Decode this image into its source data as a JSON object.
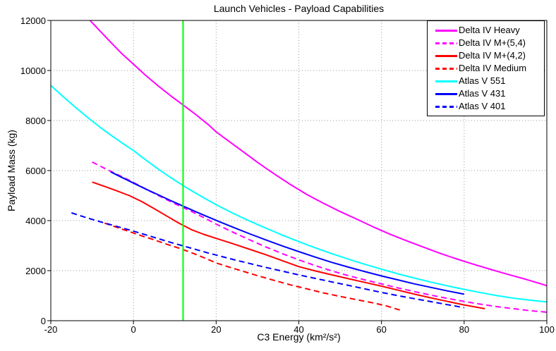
{
  "chart_data": {
    "type": "line",
    "title": "Launch Vehicles - Payload Capabilities",
    "xlabel": "C3 Energy (km²/s²)",
    "ylabel": "Payload Mass (kg)",
    "xlim": [
      -20,
      100
    ],
    "ylim": [
      0,
      12000
    ],
    "xticks": [
      -20,
      0,
      20,
      40,
      60,
      80,
      100
    ],
    "yticks": [
      0,
      2000,
      4000,
      6000,
      8000,
      10000,
      12000
    ],
    "grid": true,
    "grid_style": "dotted",
    "grid_color": "#999999",
    "axis_color": "#000000",
    "legend_position": "top-right",
    "reference_line": {
      "orientation": "vertical",
      "x": 12,
      "color": "#00FF00"
    },
    "series": [
      {
        "name": "Delta IV Heavy",
        "color": "#FF00FF",
        "line_style": "solid",
        "points": [
          [
            -10.5,
            12000
          ],
          [
            -8,
            11560
          ],
          [
            -5.5,
            11130
          ],
          [
            -3,
            10700
          ],
          [
            0,
            10250
          ],
          [
            3,
            9800
          ],
          [
            6,
            9380
          ],
          [
            9,
            8990
          ],
          [
            12,
            8620
          ],
          [
            15,
            8250
          ],
          [
            18,
            7850
          ],
          [
            20,
            7550
          ],
          [
            23,
            7180
          ],
          [
            26,
            6820
          ],
          [
            30,
            6330
          ],
          [
            34,
            5870
          ],
          [
            38,
            5440
          ],
          [
            42,
            5040
          ],
          [
            46,
            4690
          ],
          [
            50,
            4360
          ],
          [
            54,
            4060
          ],
          [
            58,
            3750
          ],
          [
            62,
            3460
          ],
          [
            66,
            3200
          ],
          [
            70,
            2950
          ],
          [
            74,
            2700
          ],
          [
            78,
            2480
          ],
          [
            82,
            2270
          ],
          [
            86,
            2070
          ],
          [
            90,
            1880
          ],
          [
            95,
            1650
          ],
          [
            100,
            1400
          ]
        ]
      },
      {
        "name": "Delta IV M+(5,4)",
        "color": "#FF00FF",
        "line_style": "dashed",
        "points": [
          [
            -10,
            6340
          ],
          [
            -7,
            6090
          ],
          [
            -4,
            5850
          ],
          [
            -1,
            5610
          ],
          [
            2,
            5350
          ],
          [
            5,
            5090
          ],
          [
            8,
            4840
          ],
          [
            11,
            4600
          ],
          [
            14,
            4370
          ],
          [
            17,
            4120
          ],
          [
            20,
            3860
          ],
          [
            24,
            3540
          ],
          [
            28,
            3240
          ],
          [
            32,
            2950
          ],
          [
            36,
            2680
          ],
          [
            40,
            2430
          ],
          [
            44,
            2200
          ],
          [
            48,
            1990
          ],
          [
            52,
            1800
          ],
          [
            56,
            1630
          ],
          [
            60,
            1470
          ],
          [
            64,
            1310
          ],
          [
            68,
            1160
          ],
          [
            72,
            1020
          ],
          [
            76,
            890
          ],
          [
            80,
            770
          ],
          [
            84,
            660
          ],
          [
            88,
            560
          ],
          [
            92,
            480
          ],
          [
            96,
            400
          ],
          [
            100,
            340
          ]
        ]
      },
      {
        "name": "Delta IV M+(4,2)",
        "color": "#FF0000",
        "line_style": "solid",
        "points": [
          [
            -10,
            5540
          ],
          [
            -7,
            5370
          ],
          [
            -4,
            5190
          ],
          [
            -1,
            5000
          ],
          [
            2,
            4760
          ],
          [
            5,
            4480
          ],
          [
            8,
            4190
          ],
          [
            11,
            3900
          ],
          [
            14,
            3640
          ],
          [
            17,
            3450
          ],
          [
            20,
            3290
          ],
          [
            24,
            3080
          ],
          [
            28,
            2860
          ],
          [
            32,
            2640
          ],
          [
            36,
            2400
          ],
          [
            40,
            2160
          ],
          [
            44,
            1990
          ],
          [
            48,
            1830
          ],
          [
            52,
            1680
          ],
          [
            56,
            1530
          ],
          [
            60,
            1380
          ],
          [
            64,
            1220
          ],
          [
            68,
            1060
          ],
          [
            72,
            910
          ],
          [
            76,
            770
          ],
          [
            80,
            630
          ],
          [
            85,
            480
          ]
        ]
      },
      {
        "name": "Delta IV Medium",
        "color": "#FF0000",
        "line_style": "dashed",
        "points": [
          [
            -7,
            3900
          ],
          [
            -4,
            3730
          ],
          [
            -1,
            3560
          ],
          [
            2,
            3390
          ],
          [
            5,
            3230
          ],
          [
            8,
            3060
          ],
          [
            11,
            2900
          ],
          [
            14,
            2720
          ],
          [
            17,
            2520
          ],
          [
            20,
            2310
          ],
          [
            23,
            2150
          ],
          [
            26,
            2000
          ],
          [
            30,
            1800
          ],
          [
            34,
            1610
          ],
          [
            38,
            1430
          ],
          [
            42,
            1270
          ],
          [
            46,
            1110
          ],
          [
            50,
            970
          ],
          [
            54,
            840
          ],
          [
            58,
            710
          ],
          [
            61,
            600
          ],
          [
            63,
            500
          ],
          [
            65,
            400
          ]
        ]
      },
      {
        "name": "Atlas V 551",
        "color": "#00FFFF",
        "line_style": "solid",
        "points": [
          [
            -20,
            9400
          ],
          [
            -17,
            8950
          ],
          [
            -14,
            8520
          ],
          [
            -11,
            8110
          ],
          [
            -8,
            7720
          ],
          [
            -5,
            7360
          ],
          [
            -2,
            7020
          ],
          [
            0,
            6800
          ],
          [
            3,
            6420
          ],
          [
            6,
            6060
          ],
          [
            9,
            5720
          ],
          [
            12,
            5400
          ],
          [
            15,
            5100
          ],
          [
            18,
            4820
          ],
          [
            21,
            4550
          ],
          [
            24,
            4300
          ],
          [
            28,
            3990
          ],
          [
            32,
            3700
          ],
          [
            36,
            3420
          ],
          [
            40,
            3160
          ],
          [
            44,
            2910
          ],
          [
            48,
            2680
          ],
          [
            52,
            2460
          ],
          [
            56,
            2250
          ],
          [
            60,
            2060
          ],
          [
            64,
            1870
          ],
          [
            68,
            1700
          ],
          [
            72,
            1540
          ],
          [
            76,
            1390
          ],
          [
            80,
            1250
          ],
          [
            84,
            1120
          ],
          [
            88,
            1000
          ],
          [
            92,
            900
          ],
          [
            96,
            820
          ],
          [
            100,
            750
          ]
        ]
      },
      {
        "name": "Atlas V 431",
        "color": "#0000FF",
        "line_style": "solid",
        "points": [
          [
            -5.5,
            5950
          ],
          [
            -3,
            5740
          ],
          [
            0,
            5500
          ],
          [
            3,
            5260
          ],
          [
            6,
            5030
          ],
          [
            9,
            4800
          ],
          [
            12,
            4580
          ],
          [
            15,
            4360
          ],
          [
            18,
            4150
          ],
          [
            21,
            3940
          ],
          [
            24,
            3740
          ],
          [
            28,
            3480
          ],
          [
            32,
            3230
          ],
          [
            36,
            2990
          ],
          [
            40,
            2760
          ],
          [
            44,
            2540
          ],
          [
            48,
            2330
          ],
          [
            52,
            2140
          ],
          [
            56,
            1960
          ],
          [
            60,
            1790
          ],
          [
            64,
            1630
          ],
          [
            68,
            1470
          ],
          [
            72,
            1330
          ],
          [
            76,
            1190
          ],
          [
            80,
            1060
          ]
        ]
      },
      {
        "name": "Atlas V 401",
        "color": "#0000FF",
        "line_style": "dashed",
        "points": [
          [
            -15,
            4310
          ],
          [
            -12,
            4150
          ],
          [
            -9,
            4000
          ],
          [
            -6,
            3860
          ],
          [
            -3,
            3720
          ],
          [
            0,
            3580
          ],
          [
            3,
            3430
          ],
          [
            6,
            3280
          ],
          [
            9,
            3130
          ],
          [
            12,
            2990
          ],
          [
            15,
            2850
          ],
          [
            18,
            2710
          ],
          [
            21,
            2580
          ],
          [
            24,
            2450
          ],
          [
            28,
            2290
          ],
          [
            32,
            2130
          ],
          [
            36,
            1980
          ],
          [
            40,
            1830
          ],
          [
            44,
            1690
          ],
          [
            48,
            1550
          ],
          [
            52,
            1410
          ],
          [
            56,
            1270
          ],
          [
            60,
            1130
          ],
          [
            64,
            1000
          ],
          [
            68,
            880
          ],
          [
            72,
            760
          ],
          [
            76,
            640
          ],
          [
            80,
            520
          ]
        ]
      }
    ]
  }
}
